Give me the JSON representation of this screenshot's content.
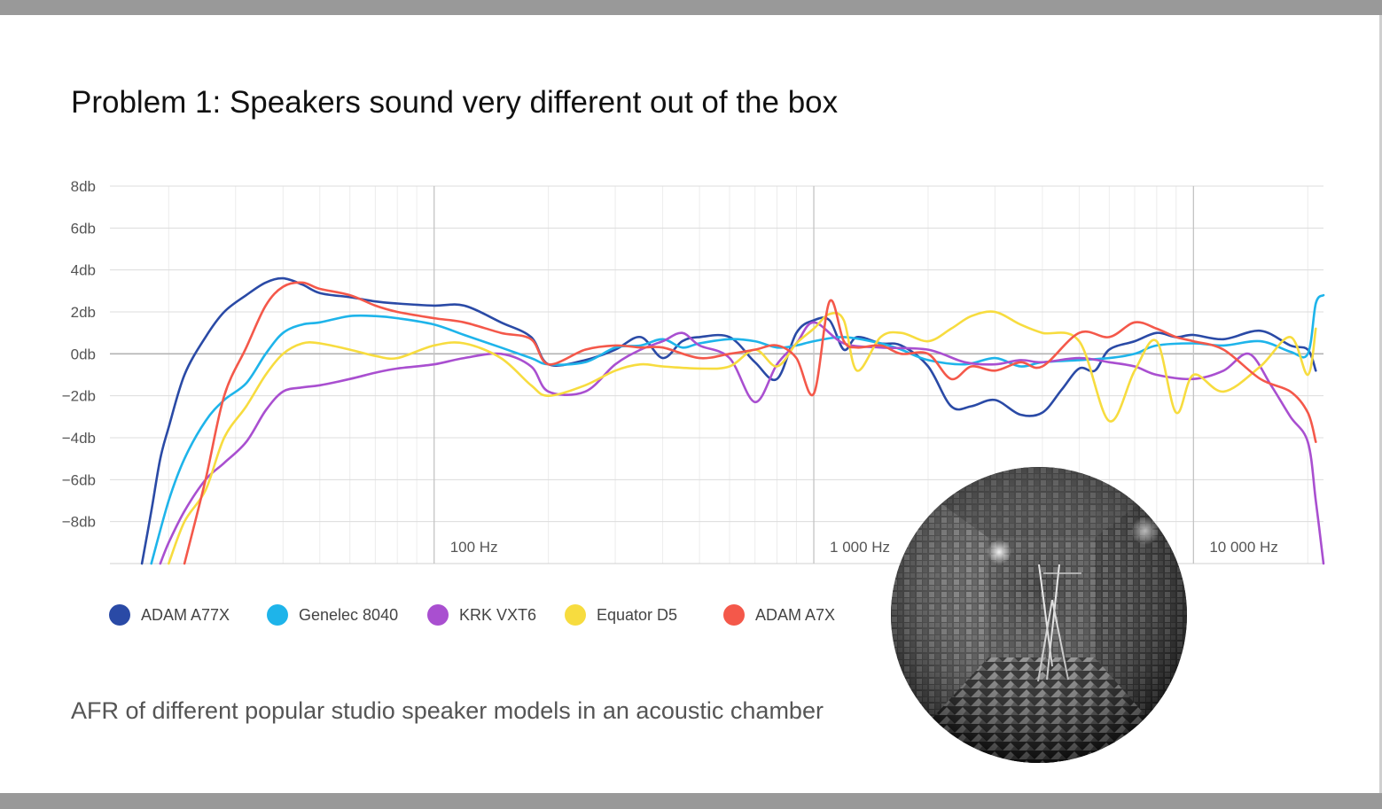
{
  "title": "Problem 1: Speakers sound very different out of the box",
  "caption": "AFR of different popular studio speaker models in an acoustic chamber",
  "colors": {
    "ADAM A77X": "#2a4aa6",
    "Genelec 8040": "#1eb4ea",
    "KRK VXT6": "#a94fd0",
    "Equator D5": "#f7dc3f",
    "ADAM A7X": "#f4584a"
  },
  "legend": [
    {
      "label": "ADAM A77X",
      "color": "#2a4aa6"
    },
    {
      "label": "Genelec 8040",
      "color": "#1eb4ea"
    },
    {
      "label": "KRK VXT6",
      "color": "#a94fd0"
    },
    {
      "label": "Equator D5",
      "color": "#f7dc3f"
    },
    {
      "label": "ADAM A7X",
      "color": "#f4584a"
    }
  ],
  "chamber_image": {
    "icon": "anechoic-chamber-photo"
  },
  "chart_data": {
    "type": "line",
    "title": "",
    "xlabel": "",
    "ylabel": "",
    "x_scale": "log",
    "xlim": [
      14,
      22000
    ],
    "ylim": [
      -10,
      8
    ],
    "y_ticks": [
      {
        "value": 8,
        "label": "8db"
      },
      {
        "value": 6,
        "label": "6db"
      },
      {
        "value": 4,
        "label": "4db"
      },
      {
        "value": 2,
        "label": "2db"
      },
      {
        "value": 0,
        "label": "0db"
      },
      {
        "value": -2,
        "label": "−2db"
      },
      {
        "value": -4,
        "label": "−4db"
      },
      {
        "value": -6,
        "label": "−6db"
      },
      {
        "value": -8,
        "label": "−8db"
      }
    ],
    "x_ticks": [
      {
        "value": 100,
        "label": "100 Hz"
      },
      {
        "value": 1000,
        "label": "1 000 Hz"
      },
      {
        "value": 10000,
        "label": "10 000 Hz"
      }
    ],
    "grid": true,
    "legend_position": "bottom-left",
    "series": [
      {
        "name": "ADAM A77X",
        "x": [
          17,
          18,
          19,
          20,
          22,
          25,
          28,
          32,
          36,
          40,
          45,
          50,
          60,
          70,
          80,
          100,
          120,
          150,
          180,
          200,
          250,
          300,
          350,
          400,
          450,
          500,
          600,
          700,
          800,
          900,
          1000,
          1100,
          1200,
          1300,
          1500,
          1700,
          2000,
          2300,
          2600,
          3000,
          3500,
          4000,
          4500,
          5000,
          5500,
          6000,
          7000,
          8000,
          9000,
          10000,
          12000,
          15000,
          18000,
          20000,
          21000
        ],
        "y": [
          -10,
          -7.5,
          -5,
          -3.5,
          -1,
          0.8,
          2.0,
          2.8,
          3.4,
          3.6,
          3.3,
          2.9,
          2.7,
          2.5,
          2.4,
          2.3,
          2.3,
          1.5,
          0.8,
          -0.5,
          -0.3,
          0.2,
          0.8,
          -0.2,
          0.6,
          0.8,
          0.8,
          -0.4,
          -1.2,
          1.0,
          1.6,
          1.6,
          0.2,
          0.8,
          0.5,
          0.4,
          -0.6,
          -2.5,
          -2.5,
          -2.2,
          -2.9,
          -2.8,
          -1.7,
          -0.7,
          -0.8,
          0.2,
          0.6,
          1.0,
          0.8,
          0.9,
          0.7,
          1.1,
          0.4,
          0.2,
          -0.8
        ]
      },
      {
        "name": "Genelec 8040",
        "x": [
          18,
          20,
          22,
          25,
          28,
          32,
          36,
          40,
          45,
          50,
          60,
          70,
          80,
          100,
          120,
          150,
          180,
          200,
          250,
          300,
          350,
          400,
          450,
          500,
          600,
          700,
          800,
          900,
          1000,
          1200,
          1500,
          1700,
          2000,
          2500,
          3000,
          3500,
          4000,
          5000,
          6000,
          7000,
          8000,
          10000,
          12000,
          15000,
          18000,
          20000,
          21000,
          22000
        ],
        "y": [
          -10,
          -7,
          -5,
          -3.2,
          -2.2,
          -1.4,
          0,
          1.0,
          1.4,
          1.5,
          1.8,
          1.8,
          1.7,
          1.4,
          0.9,
          0.3,
          -0.2,
          -0.5,
          -0.4,
          0.3,
          0.4,
          0.7,
          0.3,
          0.5,
          0.7,
          0.6,
          0.3,
          0.4,
          0.6,
          0.8,
          0.5,
          0.2,
          -0.3,
          -0.5,
          -0.2,
          -0.6,
          -0.4,
          -0.3,
          -0.2,
          0.0,
          0.4,
          0.5,
          0.4,
          0.6,
          0.1,
          0.0,
          2.4,
          2.8
        ]
      },
      {
        "name": "KRK VXT6",
        "x": [
          19,
          20,
          22,
          25,
          28,
          32,
          36,
          40,
          45,
          50,
          60,
          70,
          80,
          100,
          120,
          150,
          180,
          200,
          250,
          300,
          350,
          400,
          450,
          500,
          600,
          700,
          800,
          900,
          1000,
          1200,
          1500,
          2000,
          2500,
          3000,
          3500,
          4000,
          5000,
          6000,
          7000,
          8000,
          10000,
          12000,
          14000,
          16000,
          18000,
          20000,
          21000,
          22000
        ],
        "y": [
          -10,
          -9,
          -7.5,
          -6,
          -5.2,
          -4.2,
          -2.7,
          -1.8,
          -1.6,
          -1.5,
          -1.2,
          -0.9,
          -0.7,
          -0.5,
          -0.2,
          0.0,
          -0.6,
          -1.8,
          -1.8,
          -0.5,
          0.2,
          0.6,
          1.0,
          0.4,
          -0.2,
          -2.3,
          -0.5,
          0.5,
          1.5,
          0.5,
          0.3,
          0.2,
          -0.4,
          -0.5,
          -0.3,
          -0.4,
          -0.2,
          -0.4,
          -0.6,
          -1.0,
          -1.2,
          -0.8,
          0.0,
          -1.5,
          -3.0,
          -4.2,
          -7.0,
          -10
        ]
      },
      {
        "name": "Equator D5",
        "x": [
          20,
          22,
          25,
          28,
          32,
          36,
          40,
          45,
          50,
          60,
          70,
          80,
          100,
          120,
          150,
          180,
          200,
          250,
          300,
          350,
          400,
          500,
          600,
          700,
          800,
          900,
          1000,
          1100,
          1200,
          1300,
          1500,
          1700,
          2000,
          2300,
          2600,
          3000,
          3500,
          4000,
          5000,
          6000,
          7000,
          8000,
          9000,
          10000,
          12000,
          15000,
          18000,
          20000,
          21000
        ],
        "y": [
          -10,
          -8,
          -6.5,
          -4.0,
          -2.5,
          -1.0,
          0,
          0.5,
          0.5,
          0.2,
          -0.1,
          -0.2,
          0.4,
          0.5,
          -0.2,
          -1.5,
          -2.0,
          -1.5,
          -0.8,
          -0.5,
          -0.6,
          -0.7,
          -0.6,
          0.2,
          -0.6,
          0.5,
          1.2,
          1.9,
          1.6,
          -0.8,
          0.8,
          1.0,
          0.6,
          1.2,
          1.8,
          2.0,
          1.4,
          1.0,
          0.6,
          -3.2,
          -0.8,
          0.6,
          -2.8,
          -1.0,
          -1.8,
          -0.6,
          0.8,
          -1.0,
          1.2
        ]
      },
      {
        "name": "ADAM A7X",
        "x": [
          22,
          25,
          28,
          32,
          36,
          40,
          45,
          50,
          60,
          70,
          80,
          100,
          120,
          150,
          180,
          200,
          250,
          300,
          350,
          400,
          500,
          600,
          700,
          800,
          900,
          1000,
          1100,
          1200,
          1300,
          1500,
          1700,
          2000,
          2300,
          2600,
          3000,
          3500,
          4000,
          5000,
          6000,
          7000,
          8000,
          9000,
          10000,
          12000,
          15000,
          18000,
          20000,
          21000
        ],
        "y": [
          -10,
          -6,
          -2,
          0.3,
          2.3,
          3.2,
          3.4,
          3.1,
          2.8,
          2.3,
          2.0,
          1.7,
          1.5,
          1.0,
          0.7,
          -0.5,
          0.2,
          0.4,
          0.3,
          0.3,
          -0.2,
          0.0,
          0.2,
          0.4,
          -0.2,
          -1.9,
          2.5,
          0.6,
          0.3,
          0.4,
          0.0,
          0.0,
          -1.2,
          -0.6,
          -0.8,
          -0.4,
          -0.6,
          1.0,
          0.8,
          1.5,
          1.2,
          0.8,
          0.6,
          0.2,
          -1.2,
          -1.8,
          -2.8,
          -4.2
        ]
      }
    ]
  }
}
